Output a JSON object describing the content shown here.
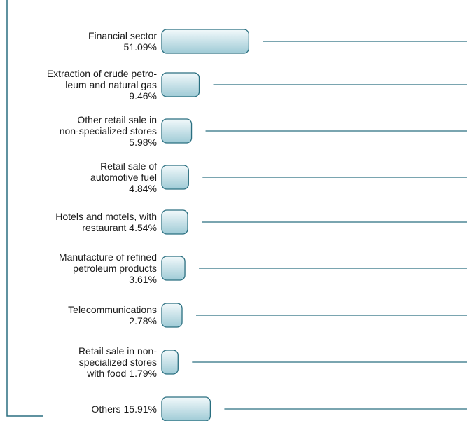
{
  "chart_data": {
    "type": "bar",
    "categories": [
      [
        "Financial sector"
      ],
      [
        "Extraction of crude petro-",
        "leum and natural gas"
      ],
      [
        "Other retail sale in",
        "non-specialized stores"
      ],
      [
        "Retail sale of",
        "automotive fuel"
      ],
      [
        "Hotels and motels, with",
        "restaurant"
      ],
      [
        "Manufacture of refined",
        "petroleum products"
      ],
      [
        "Telecommunications"
      ],
      [
        "Retail sale in non-",
        "specialized stores",
        "with food"
      ],
      [
        "Others"
      ]
    ],
    "values": [
      51.09,
      9.46,
      5.98,
      4.84,
      4.54,
      3.61,
      2.78,
      1.79,
      15.91
    ],
    "value_labels": [
      "51.09%",
      "9.46%",
      "5.98%",
      "4.84%",
      "4.54%",
      "3.61%",
      "2.78%",
      "1.79%",
      "15.91%"
    ],
    "inline_value": [
      false,
      false,
      false,
      false,
      true,
      false,
      false,
      true,
      true
    ],
    "color": "#2a6f80"
  }
}
